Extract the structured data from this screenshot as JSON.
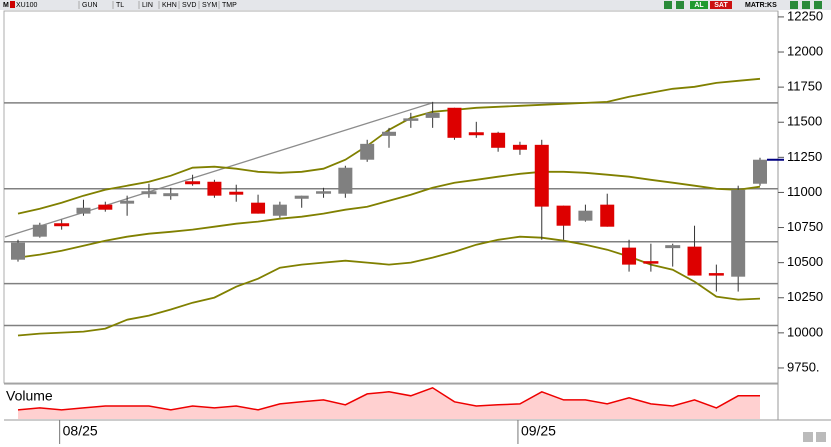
{
  "toolbar": {
    "menu": "M",
    "symbol": "XU100",
    "buttons": [
      "GUN",
      "TL",
      "LIN",
      "KHN",
      "SVD",
      "SYM",
      "TMP"
    ],
    "buy": "AL",
    "sell": "SAT",
    "matrix": "MATR:KS"
  },
  "chart_data": {
    "type": "candlestick",
    "categories": [
      null,
      null,
      "08/25",
      null,
      null,
      null,
      null,
      null,
      null,
      null,
      null,
      null,
      null,
      null,
      null,
      null,
      null,
      null,
      null,
      null,
      null,
      null,
      null,
      "09/25",
      null,
      null,
      null,
      null,
      null,
      null,
      null,
      null,
      null,
      null,
      null
    ],
    "open": [
      10521,
      10685,
      10777,
      10849,
      10913,
      10920,
      10991,
      10977,
      11076,
      11076,
      11005,
      10927,
      10834,
      10955,
      10998,
      10991,
      11233,
      11403,
      11517,
      11531,
      11603,
      11425,
      11425,
      11339,
      11339,
      10906,
      10799,
      10913,
      10607,
      10507,
      10607,
      10614,
      10422,
      10400,
      11062
    ],
    "high": [
      10663,
      10784,
      10806,
      10948,
      10934,
      10977,
      11062,
      11033,
      11126,
      11090,
      11055,
      10984,
      10934,
      10977,
      11033,
      11190,
      11375,
      11460,
      11567,
      11645,
      11603,
      11503,
      11432,
      11361,
      11375,
      10906,
      10913,
      10991,
      10663,
      10635,
      10635,
      10763,
      10486,
      11048,
      11247
    ],
    "low": [
      10507,
      10678,
      10735,
      10834,
      10863,
      10834,
      10962,
      10948,
      11048,
      10962,
      10934,
      10849,
      10820,
      10891,
      10962,
      10962,
      11218,
      11318,
      11460,
      11460,
      11375,
      11389,
      11290,
      11268,
      10663,
      10663,
      10792,
      10756,
      10436,
      10436,
      10472,
      10408,
      10294,
      10294,
      11048
    ],
    "close": [
      10642,
      10770,
      10763,
      10891,
      10877,
      10941,
      11005,
      10991,
      11062,
      10977,
      10984,
      10849,
      10913,
      10977,
      11005,
      11176,
      11346,
      11432,
      11524,
      11567,
      11389,
      11411,
      11318,
      11304,
      10899,
      10763,
      10870,
      10756,
      10486,
      10500,
      10621,
      10408,
      10415,
      11019,
      11233
    ],
    "up_color": "#808080",
    "down_color": "#dd0000",
    "bands": [
      {
        "color": "#808000",
        "values": [
          10849,
          10884,
          10927,
          10977,
          11019,
          11048,
          11076,
          11119,
          11176,
          11183,
          11169,
          11147,
          11140,
          11147,
          11169,
          11233,
          11332,
          11446,
          11531,
          11574,
          11588,
          11603,
          11610,
          11617,
          11624,
          11631,
          11638,
          11645,
          11681,
          11710,
          11738,
          11752,
          11780,
          11795,
          11809
        ]
      },
      {
        "color": "#808000",
        "values": [
          10536,
          10557,
          10585,
          10621,
          10656,
          10685,
          10706,
          10720,
          10735,
          10756,
          10777,
          10792,
          10813,
          10827,
          10849,
          10877,
          10898,
          10941,
          10984,
          11033,
          11069,
          11090,
          11112,
          11133,
          11147,
          11147,
          11140,
          11126,
          11112,
          11090,
          11069,
          11048,
          11026,
          11019,
          11041
        ]
      },
      {
        "color": "#808000",
        "values": [
          9981,
          9995,
          10002,
          10009,
          10030,
          10094,
          10123,
          10166,
          10215,
          10251,
          10329,
          10386,
          10464,
          10486,
          10500,
          10514,
          10500,
          10486,
          10500,
          10536,
          10578,
          10628,
          10663,
          10685,
          10678,
          10656,
          10628,
          10592,
          10543,
          10486,
          10450,
          10365,
          10258,
          10237,
          10244
        ]
      }
    ],
    "levels": [
      11638,
      11026,
      10649,
      10351,
      10052
    ],
    "level_color": "#808080",
    "ylim": [
      9650,
      12285
    ],
    "yticks": [
      12250,
      12000,
      11750,
      11500,
      11250,
      11000,
      10750,
      10500,
      10250,
      10000,
      {
        "value": 9750,
        "label": "9750."
      }
    ],
    "volume": {
      "title": "Volume",
      "color": "#ee0000",
      "ylim": [
        0,
        18
      ],
      "values": [
        4.8,
        5.9,
        4.8,
        5.9,
        6.9,
        6.9,
        6.9,
        4.8,
        6.9,
        5.9,
        6.9,
        4.8,
        8.0,
        9.1,
        10.1,
        7.5,
        13.3,
        14.4,
        12.3,
        16.5,
        9.1,
        6.9,
        7.5,
        8.0,
        14.4,
        10.1,
        10.1,
        8.0,
        11.2,
        8.0,
        6.9,
        10.1,
        5.9,
        12.3,
        12.3
      ]
    }
  }
}
